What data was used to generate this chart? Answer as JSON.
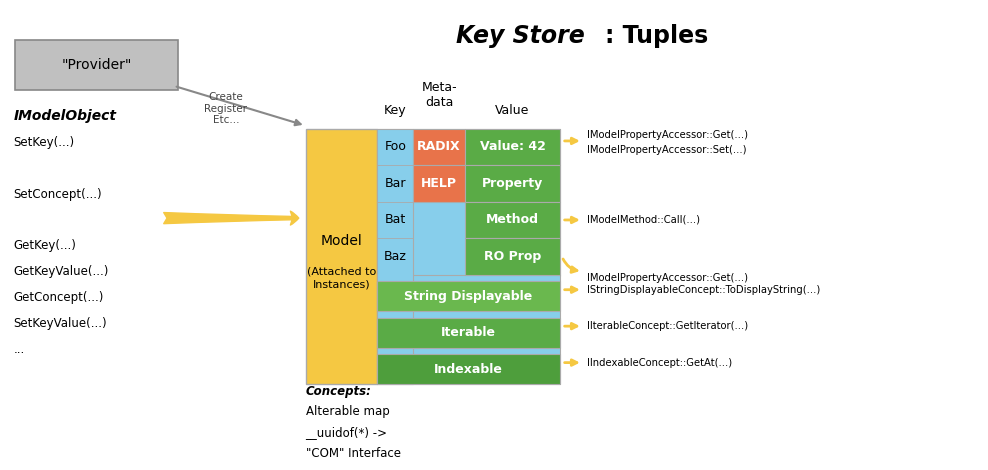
{
  "title_italic": "Key Store",
  "title_normal": ": Tuples",
  "bg_color": "#ffffff",
  "provider_box_color": "#c0c0c0",
  "provider_box_text": "\"Provider\"",
  "model_box_color": "#f5c842",
  "key_col_color": "#87CEEB",
  "metadata_col_color": "#e8734a",
  "value_col_color": "#5aab46",
  "concept_row_color": "#5aab46",
  "arrow_color": "#f5c842",
  "imodel_text": "IModelObject",
  "imodel_methods": [
    "SetKey(...)",
    "",
    "SetConcept(...)",
    "",
    "GetKey(...)",
    "GetKeyValue(...)",
    "GetConcept(...)",
    "SetKeyValue(...)",
    "..."
  ],
  "key_labels": [
    "Foo",
    "Bar",
    "Bat",
    "Baz"
  ],
  "metadata_labels": [
    "RADIX",
    "HELP",
    "",
    ""
  ],
  "value_labels": [
    "Value: 42",
    "Property",
    "Method",
    "RO Prop"
  ],
  "concept_labels": [
    "String Displayable",
    "Iterable",
    "Indexable"
  ],
  "right_labels_top": [
    "IModelPropertyAccessor::Get(...)",
    "IModelPropertyAccessor::Set(...)"
  ],
  "right_labels": [
    [
      "IModelPropertyAccessor::Get(...)",
      "IModelPropertyAccessor::Set(...)"
    ],
    [
      "IModelMethod::Call(...)"
    ],
    [
      "IModelPropertyAccessor::Get(...)"
    ],
    [
      "IStringDisplayableConcept::ToDisplayString(...)"
    ],
    [
      "IIterableConcept::GetIterator(...)"
    ],
    [
      "IIndexableConcept::GetAt(...)"
    ]
  ],
  "concepts_text": [
    "Concepts:",
    "Alterable map",
    "__uuidof(*) ->",
    "\"COM\" Interface"
  ],
  "col_headers": [
    "Key",
    "Meta-\ndata",
    "Value"
  ]
}
